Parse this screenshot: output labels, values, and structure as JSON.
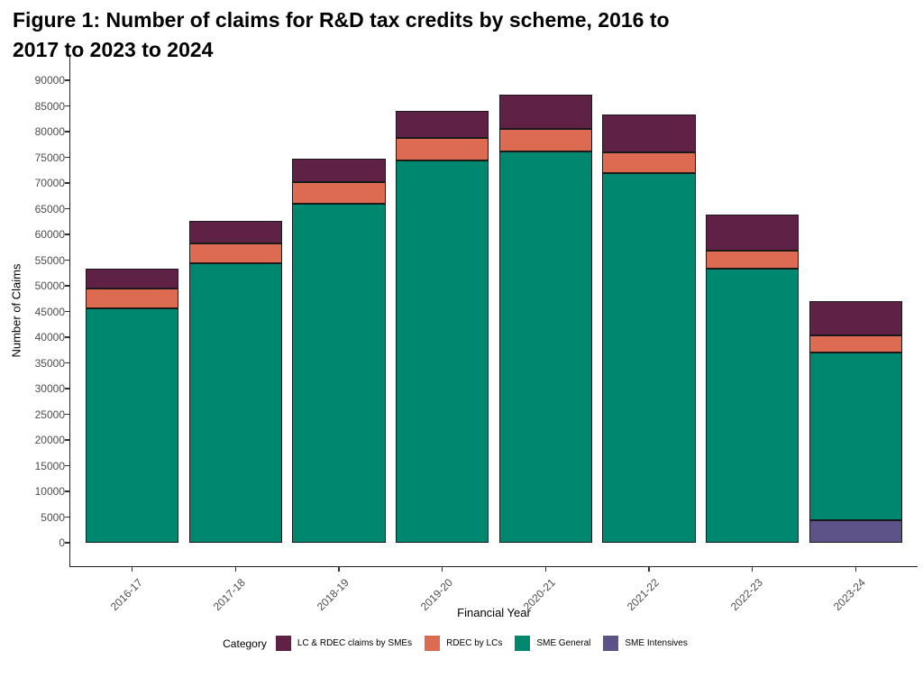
{
  "figure": {
    "title_line1": "Figure 1: Number of claims for R&D tax credits by scheme, 2016 to",
    "title_line2": "2017 to 2023 to 2024"
  },
  "axes": {
    "x_title": "Financial Year",
    "y_title": "Number of Claims"
  },
  "legend": {
    "title": "Category",
    "position": "bottom",
    "items": [
      {
        "label": "LC & RDEC claims by SMEs",
        "color": "#5f2145"
      },
      {
        "label": "RDEC by LCs",
        "color": "#dc6b51"
      },
      {
        "label": "SME General",
        "color": "#008770"
      },
      {
        "label": "SME Intensives",
        "color": "#5d5389"
      }
    ]
  },
  "chart_data": {
    "type": "bar",
    "stacked": true,
    "title": "Figure 1: Number of claims for R&D tax credits by scheme, 2016 to 2017 to 2023 to 2024",
    "xlabel": "Financial Year",
    "ylabel": "Number of Claims",
    "ylim": [
      0,
      90000
    ],
    "ytick_step": 5000,
    "grid": false,
    "legend_title": "Category",
    "legend_position": "bottom",
    "categories": [
      "2016-17",
      "2017-18",
      "2018-19",
      "2019-20",
      "2020-21",
      "2021-22",
      "2022-23",
      "2023-24"
    ],
    "series": [
      {
        "name": "SME Intensives",
        "color": "#5d5389",
        "values": [
          0,
          0,
          0,
          0,
          0,
          0,
          0,
          4300
        ]
      },
      {
        "name": "SME General",
        "color": "#008770",
        "values": [
          45700,
          54300,
          66000,
          74300,
          76200,
          72000,
          53300,
          32800
        ]
      },
      {
        "name": "RDEC by LCs",
        "color": "#dc6b51",
        "values": [
          3800,
          4000,
          4200,
          4400,
          4300,
          3900,
          3500,
          3300
        ]
      },
      {
        "name": "LC & RDEC claims by SMEs",
        "color": "#5f2145",
        "values": [
          3900,
          4300,
          4600,
          5400,
          6700,
          7500,
          7100,
          6600
        ]
      }
    ],
    "totals": [
      53400,
      62600,
      74800,
      84100,
      87200,
      83400,
      63900,
      47000
    ]
  }
}
